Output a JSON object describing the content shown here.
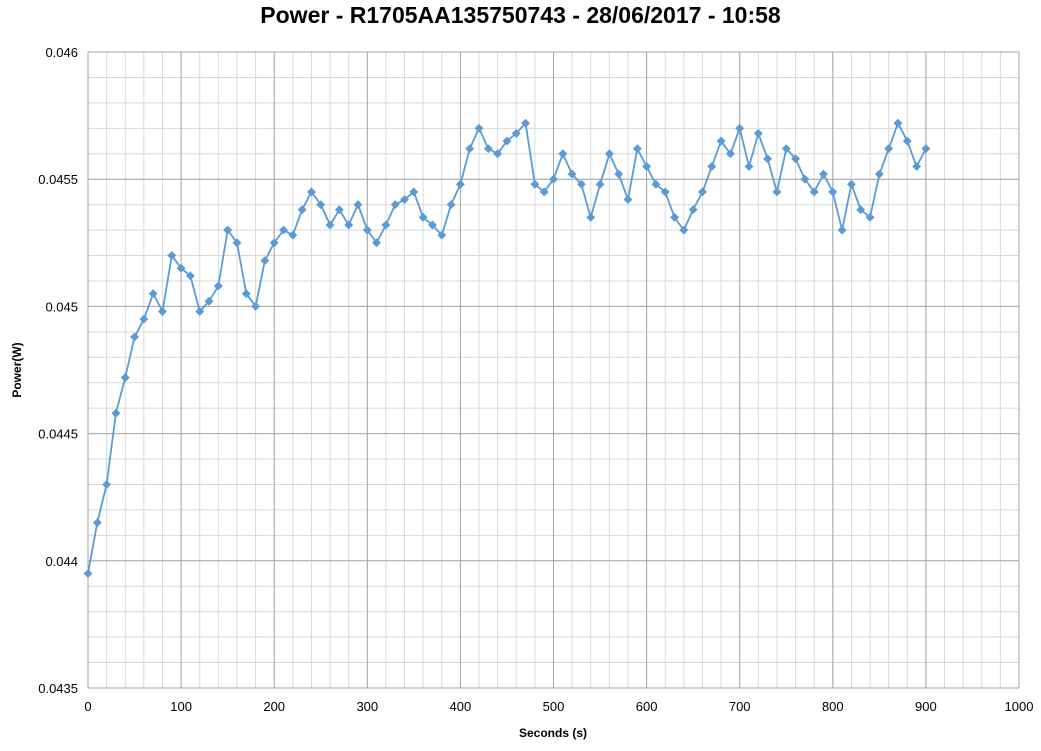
{
  "chart_data": {
    "type": "scatter",
    "title": "Power - R1705AA135750743 - 28/06/2017 - 10:58",
    "xlabel": "Seconds (s)",
    "ylabel": "Power(W)",
    "xlim": [
      0,
      1000
    ],
    "ylim": [
      0.0435,
      0.046
    ],
    "x_ticks": [
      0,
      100,
      200,
      300,
      400,
      500,
      600,
      700,
      800,
      900,
      1000
    ],
    "y_ticks": [
      0.0435,
      0.044,
      0.0445,
      0.045,
      0.0455,
      0.046
    ],
    "x_tick_labels": [
      "0",
      "100",
      "200",
      "300",
      "400",
      "500",
      "600",
      "700",
      "800",
      "900",
      "1000"
    ],
    "y_tick_labels": [
      "0.0435",
      "0.044",
      "0.0445",
      "0.045",
      "0.0455",
      "0.046"
    ],
    "grid": true,
    "legend": "none",
    "series": [
      {
        "color": "#5b9bd5",
        "marker": "diamond",
        "x": [
          0,
          10,
          20,
          30,
          40,
          50,
          60,
          70,
          80,
          90,
          100,
          110,
          120,
          130,
          140,
          150,
          160,
          170,
          180,
          190,
          200,
          210,
          220,
          230,
          240,
          250,
          260,
          270,
          280,
          290,
          300,
          310,
          320,
          330,
          340,
          350,
          360,
          370,
          380,
          390,
          400,
          410,
          420,
          430,
          440,
          450,
          460,
          470,
          480,
          490,
          500,
          510,
          520,
          530,
          540,
          550,
          560,
          570,
          580,
          590,
          600,
          610,
          620,
          630,
          640,
          650,
          660,
          670,
          680,
          690,
          700,
          710,
          720,
          730,
          740,
          750,
          760,
          770,
          780,
          790,
          800,
          810,
          820,
          830,
          840,
          850,
          860,
          870,
          880,
          890,
          900
        ],
        "y": [
          0.04395,
          0.04415,
          0.0443,
          0.04458,
          0.04472,
          0.04488,
          0.04495,
          0.04505,
          0.04498,
          0.0452,
          0.04515,
          0.04512,
          0.04498,
          0.04502,
          0.04508,
          0.0453,
          0.04525,
          0.04505,
          0.045,
          0.04518,
          0.04525,
          0.0453,
          0.04528,
          0.04538,
          0.04545,
          0.0454,
          0.04532,
          0.04538,
          0.04532,
          0.0454,
          0.0453,
          0.04525,
          0.04532,
          0.0454,
          0.04542,
          0.04545,
          0.04535,
          0.04532,
          0.04528,
          0.0454,
          0.04548,
          0.04562,
          0.0457,
          0.04562,
          0.0456,
          0.04565,
          0.04568,
          0.04572,
          0.04548,
          0.04545,
          0.0455,
          0.0456,
          0.04552,
          0.04548,
          0.04535,
          0.04548,
          0.0456,
          0.04552,
          0.04542,
          0.04562,
          0.04555,
          0.04548,
          0.04545,
          0.04535,
          0.0453,
          0.04538,
          0.04545,
          0.04555,
          0.04565,
          0.0456,
          0.0457,
          0.04555,
          0.04568,
          0.04558,
          0.04545,
          0.04562,
          0.04558,
          0.0455,
          0.04545,
          0.04552,
          0.04545,
          0.0453,
          0.04548,
          0.04538,
          0.04535,
          0.04552,
          0.04562,
          0.04572,
          0.04565,
          0.04555,
          0.04562
        ]
      }
    ]
  }
}
